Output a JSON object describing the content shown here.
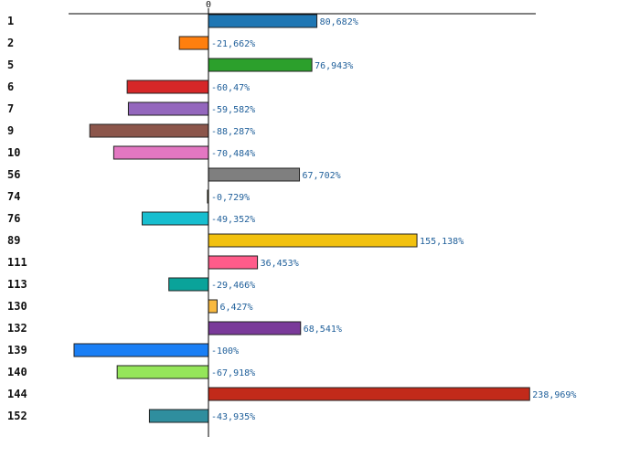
{
  "chart_data": {
    "type": "bar",
    "orientation": "horizontal",
    "title": "",
    "xlabel": "",
    "ylabel": "",
    "xlim": [
      -100,
      240
    ],
    "grid": false,
    "x_ticks": [
      0
    ],
    "x_tick_labels": [
      "0"
    ],
    "categories": [
      "1",
      "2",
      "5",
      "6",
      "7",
      "9",
      "10",
      "56",
      "74",
      "76",
      "89",
      "111",
      "113",
      "130",
      "132",
      "139",
      "140",
      "144",
      "152"
    ],
    "values": [
      80.682,
      -21.662,
      76.943,
      -60.47,
      -59.582,
      -88.287,
      -70.484,
      67.702,
      -0.729,
      -49.352,
      155.138,
      36.453,
      -29.466,
      6.427,
      68.541,
      -100,
      -67.918,
      238.969,
      -43.935
    ],
    "value_labels": [
      "80,682%",
      "-21,662%",
      "76,943%",
      "-60,47%",
      "-59,582%",
      "-88,287%",
      "-70,484%",
      "67,702%",
      "-0,729%",
      "-49,352%",
      "155,138%",
      "36,453%",
      "-29,466%",
      "6,427%",
      "68,541%",
      "-100%",
      "-67,918%",
      "238,969%",
      "-43,935%"
    ],
    "colors": [
      "#1f77b4",
      "#ff7f0e",
      "#2ca02c",
      "#d62728",
      "#9467bd",
      "#8c564b",
      "#e377c2",
      "#7f7f7f",
      "#bcbd22",
      "#17becf",
      "#f2c10f",
      "#ff5c8a",
      "#0aa39a",
      "#f9b93f",
      "#7a3a9a",
      "#1a7ff5",
      "#95e65a",
      "#c22a1a",
      "#2f8e9e"
    ]
  }
}
